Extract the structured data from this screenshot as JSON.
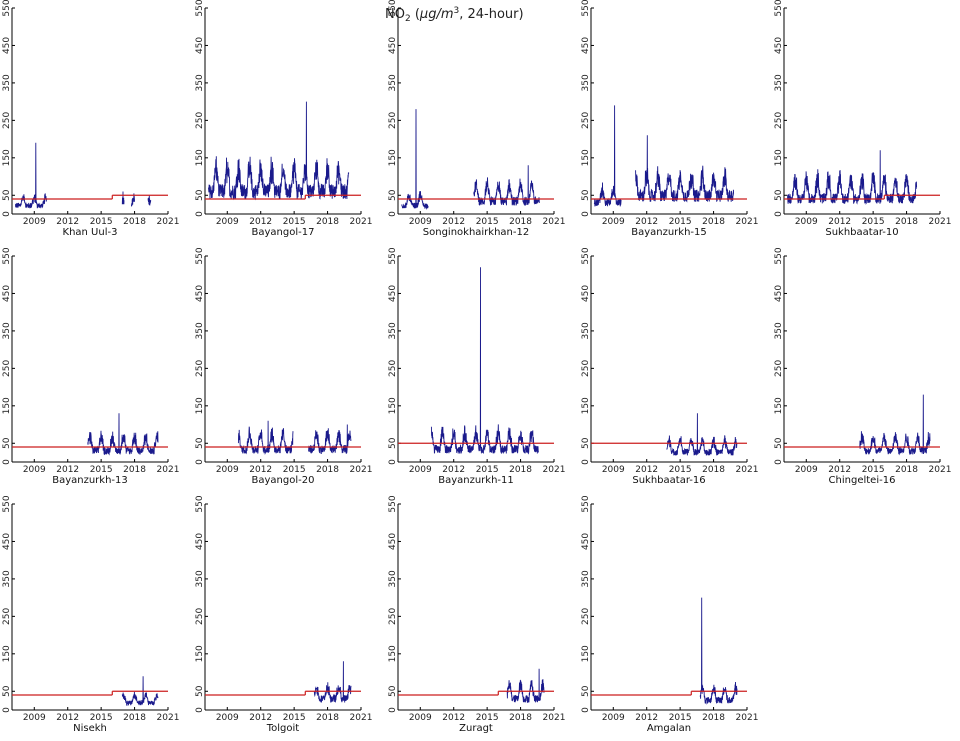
{
  "title_parts": {
    "base": "NO",
    "sub": "2",
    "paren_open": " (",
    "mu": "μ",
    "unit_a": "g/m",
    "sup": "3",
    "rest": ", 24-hour)"
  },
  "axes": {
    "x_ticks": [
      "2009",
      "2012",
      "2015",
      "2018",
      "2021"
    ],
    "y_ticks": [
      "0",
      "50",
      "150",
      "250",
      "350",
      "450",
      "550"
    ],
    "xlim": [
      2007,
      2021
    ],
    "ylim": [
      0,
      550
    ]
  },
  "colors": {
    "series": "#1a1a8c",
    "standard": "#cc1f1f",
    "axis": "#000000"
  },
  "chart_data": [
    {
      "type": "line",
      "station": "Khan Uul-3",
      "segments": [
        [
          2007.3,
          2010.1,
          30,
          20,
          190
        ],
        [
          2016.9,
          2017.05,
          35,
          10,
          60
        ],
        [
          2017.7,
          2018.0,
          40,
          10,
          55
        ],
        [
          2019.2,
          2019.45,
          45,
          10,
          50
        ]
      ],
      "standard": [
        [
          2007,
          2016,
          40
        ],
        [
          2016,
          2021,
          50
        ]
      ],
      "xdata_end": 2021
    },
    {
      "type": "line",
      "station": "Bayangol-17",
      "segments": [
        [
          2007.3,
          2019.9,
          80,
          60,
          300
        ]
      ],
      "standard": [
        [
          2007,
          2016,
          40
        ],
        [
          2016,
          2021,
          50
        ]
      ],
      "xdata_end": 2021
    },
    {
      "type": "line",
      "station": "Songinokhairkhan-12",
      "segments": [
        [
          2007.3,
          2009.7,
          30,
          25,
          280
        ],
        [
          2013.8,
          2019.7,
          45,
          40,
          130
        ]
      ],
      "standard": [
        [
          2007,
          2021,
          40
        ]
      ],
      "xdata_end": 2021
    },
    {
      "type": "line",
      "station": "Bayanzurkh-15",
      "segments": [
        [
          2007.3,
          2009.7,
          40,
          35,
          290
        ],
        [
          2011.0,
          2019.8,
          65,
          50,
          210
        ]
      ],
      "standard": [
        [
          2007,
          2021,
          40
        ]
      ],
      "xdata_end": 2021
    },
    {
      "type": "line",
      "station": "Sukhbaatar-10",
      "segments": [
        [
          2007.3,
          2018.9,
          55,
          50,
          170
        ]
      ],
      "standard": [
        [
          2007,
          2016,
          40
        ],
        [
          2016,
          2021,
          50
        ]
      ],
      "xdata_end": 2021
    },
    {
      "type": "line",
      "station": "Bayanzurkh-13",
      "segments": [
        [
          2013.8,
          2020.1,
          40,
          35,
          130
        ]
      ],
      "standard": [
        [
          2007,
          2021,
          40
        ]
      ],
      "xdata_end": 2021
    },
    {
      "type": "line",
      "station": "Bayangol-20",
      "segments": [
        [
          2010.0,
          2014.9,
          45,
          40,
          110
        ],
        [
          2016.3,
          2020.1,
          45,
          40,
          100
        ]
      ],
      "standard": [
        [
          2007,
          2021,
          40
        ]
      ],
      "xdata_end": 2021
    },
    {
      "type": "line",
      "station": "Bayanzurkh-11",
      "segments": [
        [
          2010.0,
          2019.6,
          45,
          40,
          520
        ]
      ],
      "standard": [
        [
          2007,
          2021,
          50
        ]
      ],
      "xdata_end": 2021
    },
    {
      "type": "line",
      "station": "Sukhbaatar-16",
      "segments": [
        [
          2013.8,
          2020.1,
          35,
          30,
          130
        ]
      ],
      "standard": [
        [
          2007,
          2021,
          50
        ]
      ],
      "xdata_end": 2021
    },
    {
      "type": "line",
      "station": "Chingeltei-16",
      "segments": [
        [
          2013.8,
          2020.1,
          40,
          35,
          180
        ]
      ],
      "standard": [
        [
          2007,
          2021,
          40
        ]
      ],
      "xdata_end": 2021
    },
    {
      "type": "line",
      "station": "Nisekh",
      "segments": [
        [
          2016.9,
          2020.1,
          25,
          20,
          90
        ]
      ],
      "standard": [
        [
          2007,
          2016,
          40
        ],
        [
          2016,
          2021,
          50
        ]
      ],
      "xdata_end": 2021
    },
    {
      "type": "line",
      "station": "Tolgoit",
      "segments": [
        [
          2016.8,
          2020.1,
          40,
          30,
          130
        ]
      ],
      "standard": [
        [
          2007,
          2016,
          40
        ],
        [
          2016,
          2021,
          50
        ]
      ],
      "xdata_end": 2021
    },
    {
      "type": "line",
      "station": "Zuragt",
      "segments": [
        [
          2016.8,
          2020.1,
          40,
          35,
          110
        ]
      ],
      "standard": [
        [
          2007,
          2016,
          40
        ],
        [
          2016,
          2021,
          50
        ]
      ],
      "xdata_end": 2021
    },
    {
      "type": "line",
      "station": "Amgalan",
      "segments": [
        [
          2016.8,
          2020.1,
          35,
          30,
          300
        ]
      ],
      "standard": [
        [
          2007,
          2016,
          40
        ],
        [
          2016,
          2021,
          50
        ]
      ],
      "xdata_end": 2021
    }
  ]
}
